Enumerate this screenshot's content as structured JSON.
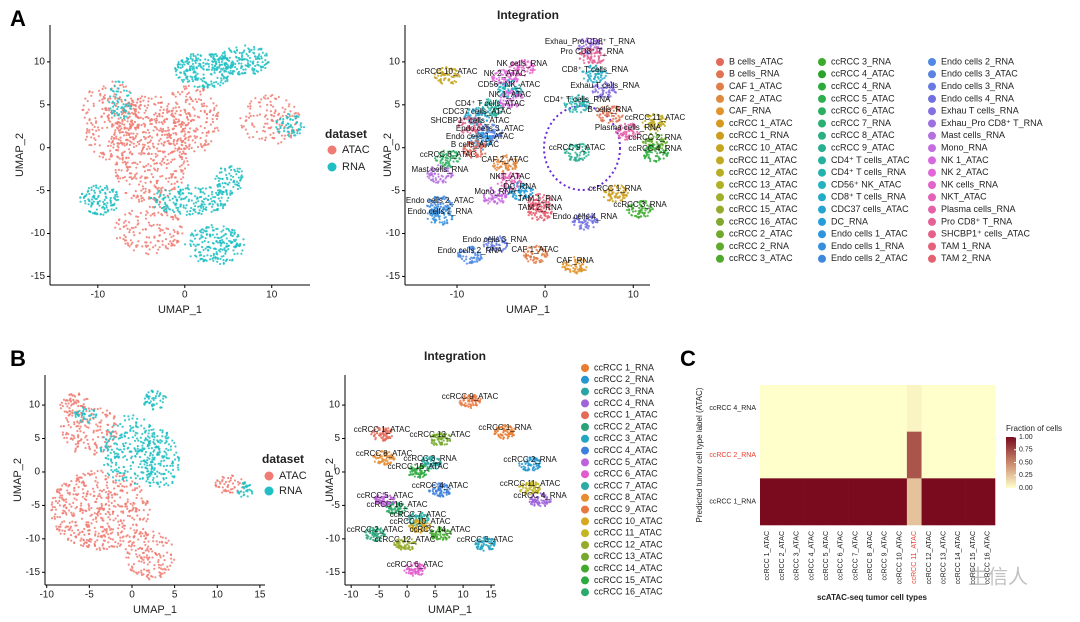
{
  "panel_labels": [
    "A",
    "B",
    "C"
  ],
  "watermark": "生信人",
  "chart_data": [
    {
      "type": "scatter",
      "xlabel": "UMAP_1",
      "ylabel": "UMAP_2",
      "xlim": [
        -15.5,
        14.4
      ],
      "ylim": [
        -16,
        14.3
      ],
      "xticks": [
        -10,
        0,
        10
      ],
      "yticks": [
        -15,
        -10,
        -5,
        0,
        5,
        10
      ],
      "legend_title": "dataset",
      "series": [
        {
          "name": "ATAC",
          "color": "#f07b72"
        },
        {
          "name": "RNA",
          "color": "#1fbfc3"
        }
      ]
    },
    {
      "type": "scatter",
      "title": "Integration",
      "xlabel": "UMAP_1",
      "ylabel": "UMAP_2",
      "xlim": [
        -15.9,
        11.9
      ],
      "ylim": [
        -16,
        14.3
      ],
      "xticks": [
        -10,
        0,
        10
      ],
      "yticks": [
        -15,
        -10,
        -5,
        0,
        5,
        10
      ],
      "series": [
        {
          "name": "B cells_ATAC",
          "color": "hsl(7,70%,62%)"
        },
        {
          "name": "B cells_RNA",
          "color": "hsl(14,70%,60%)"
        },
        {
          "name": "CAF 1_ATAC",
          "color": "hsl(21,70%,58%)"
        },
        {
          "name": "CAF 2_ATAC",
          "color": "hsl(28,72%,56%)"
        },
        {
          "name": "CAF_RNA",
          "color": "hsl(35,75%,52%)"
        },
        {
          "name": "ccRCC 1_ATAC",
          "color": "hsl(40,75%,48%)"
        },
        {
          "name": "ccRCC 1_RNA",
          "color": "hsl(44,75%,46%)"
        },
        {
          "name": "ccRCC 10_ATAC",
          "color": "hsl(48,72%,45%)"
        },
        {
          "name": "ccRCC 11_ATAC",
          "color": "hsl(52,70%,44%)"
        },
        {
          "name": "ccRCC 12_ATAC",
          "color": "hsl(56,68%,43%)"
        },
        {
          "name": "ccRCC 13_ATAC",
          "color": "hsl(60,65%,42%)"
        },
        {
          "name": "ccRCC 14_ATAC",
          "color": "hsl(66,62%,42%)"
        },
        {
          "name": "ccRCC 15_ATAC",
          "color": "hsl(72,60%,42%)"
        },
        {
          "name": "ccRCC 16_ATAC",
          "color": "hsl(80,58%,42%)"
        },
        {
          "name": "ccRCC 2_ATAC",
          "color": "hsl(88,58%,42%)"
        },
        {
          "name": "ccRCC 2_RNA",
          "color": "hsl(96,58%,42%)"
        },
        {
          "name": "ccRCC 3_ATAC",
          "color": "hsl(104,58%,42%)"
        },
        {
          "name": "ccRCC 3_RNA",
          "color": "hsl(112,60%,42%)"
        },
        {
          "name": "ccRCC 4_ATAC",
          "color": "hsl(120,60%,40%)"
        },
        {
          "name": "ccRCC 4_RNA",
          "color": "hsl(128,60%,42%)"
        },
        {
          "name": "ccRCC 5_ATAC",
          "color": "hsl(136,60%,43%)"
        },
        {
          "name": "ccRCC 6_ATAC",
          "color": "hsl(144,60%,43%)"
        },
        {
          "name": "ccRCC 7_RNA",
          "color": "hsl(152,60%,43%)"
        },
        {
          "name": "ccRCC 8_ATAC",
          "color": "hsl(160,60%,43%)"
        },
        {
          "name": "ccRCC 9_ATAC",
          "color": "hsl(166,62%,42%)"
        },
        {
          "name": "CD4⁺ T cells_ATAC",
          "color": "hsl(172,65%,42%)"
        },
        {
          "name": "CD4⁺ T cells_RNA",
          "color": "hsl(178,65%,42%)"
        },
        {
          "name": "CD56⁺ NK_ATAC",
          "color": "hsl(184,68%,44%)"
        },
        {
          "name": "CD8⁺ T cells_RNA",
          "color": "hsl(190,70%,46%)"
        },
        {
          "name": "CDC37 cells_ATAC",
          "color": "hsl(195,70%,48%)"
        },
        {
          "name": "DC_RNA",
          "color": "hsl(200,72%,50%)"
        },
        {
          "name": "Endo cells 1_ATAC",
          "color": "hsl(204,72%,52%)"
        },
        {
          "name": "Endo cells 1_RNA",
          "color": "hsl(208,72%,54%)"
        },
        {
          "name": "Endo cells 2_ATAC",
          "color": "hsl(212,72%,56%)"
        },
        {
          "name": "Endo cells 2_RNA",
          "color": "hsl(216,72%,60%)"
        },
        {
          "name": "Endo cells 3_ATAC",
          "color": "hsl(222,70%,62%)"
        },
        {
          "name": "Endo cells 3_RNA",
          "color": "hsl(230,68%,64%)"
        },
        {
          "name": "Endo cells 4_RNA",
          "color": "hsl(240,65%,66%)"
        },
        {
          "name": "Exhau T cells_RNA",
          "color": "hsl(252,65%,66%)"
        },
        {
          "name": "Exhau_Pro CD8⁺ T_RNA",
          "color": "hsl(264,65%,66%)"
        },
        {
          "name": "Mast cells_RNA",
          "color": "hsl(276,65%,66%)"
        },
        {
          "name": "Mono_RNA",
          "color": "hsl(286,65%,65%)"
        },
        {
          "name": "NK 1_ATAC",
          "color": "hsl(296,65%,64%)"
        },
        {
          "name": "NK 2_ATAC",
          "color": "hsl(304,68%,64%)"
        },
        {
          "name": "NK cells_RNA",
          "color": "hsl(312,70%,64%)"
        },
        {
          "name": "NKT_ATAC",
          "color": "hsl(320,72%,64%)"
        },
        {
          "name": "Plasma cells_RNA",
          "color": "hsl(328,72%,64%)"
        },
        {
          "name": "Pro CD8⁺ T_RNA",
          "color": "hsl(336,72%,64%)"
        },
        {
          "name": "SHCBP1⁺ cells_ATAC",
          "color": "hsl(342,72%,64%)"
        },
        {
          "name": "TAM 1_RNA",
          "color": "hsl(348,72%,64%)"
        },
        {
          "name": "TAM 2_RNA",
          "color": "hsl(354,72%,64%)"
        }
      ],
      "annotations": [
        "Exhau_Pro CD8⁺ T_RNA",
        "Pro CD8⁺ T_RNA",
        "NK cells_RNA",
        "NK 2_ATAC",
        "ccRCC 10_ATAC",
        "CD8⁺ T cells_RNA",
        "CD56⁺ NK_ATAC",
        "Exhau T cells_RNA",
        "NK 1_ATAC",
        "CD4⁺ T cells_RNA",
        "CD4⁺ T cells_ATAC",
        "B cells_RNA",
        "CDC37 cells_ATAC",
        "SHCBP1⁺ cells_ATAC",
        "ccRCC 11_ATAC",
        "Endo cells 3_ATAC",
        "Plasma cells_RNA",
        "Endo cells 1_ATAC",
        "ccRCC 2_RNA",
        "B cells_ATAC",
        "ccRCC 4_RNA",
        "ccRCC 9_ATAC",
        "ccRCC 6_ATAC",
        "CAF 2_ATAC",
        "Mast cells_RNA",
        "NKT_ATAC",
        "DC_RNA",
        "ccRCC 1_RNA",
        "Mono_RNA",
        "TAM 1_RNA",
        "ccRCC 3_RNA",
        "Endo cells 2_ATAC",
        "TAM 2_RNA",
        "Endo cells 1_RNA",
        "Endo cells 4_RNA",
        "Endo cells 3_RNA",
        "Endo cells 2_RNA",
        "CAF 1_ATAC",
        "CAF_RNA"
      ]
    },
    {
      "type": "scatter",
      "xlabel": "UMAP_1",
      "ylabel": "UMAP_2",
      "xlim": [
        -10.2,
        15.6
      ],
      "ylim": [
        -16.9,
        14.5
      ],
      "xticks": [
        -10,
        -5,
        0,
        5,
        10,
        15
      ],
      "yticks": [
        -15,
        -10,
        -5,
        0,
        5,
        10
      ],
      "legend_title": "dataset",
      "series": [
        {
          "name": "ATAC",
          "color": "#f07b72"
        },
        {
          "name": "RNA",
          "color": "#1fbfc3"
        }
      ]
    },
    {
      "type": "scatter",
      "title": "Integration",
      "xlabel": "UMAP_1",
      "ylabel": "UMAP_2",
      "xlim": [
        -11.1,
        15.7
      ],
      "ylim": [
        -16.9,
        14.5
      ],
      "xticks": [
        -10,
        -5,
        0,
        5,
        10,
        15
      ],
      "yticks": [
        -15,
        -10,
        -5,
        0,
        5,
        10
      ],
      "series": [
        {
          "name": "ccRCC 1_RNA",
          "color": "hsl(25,80%,55%)"
        },
        {
          "name": "ccRCC 2_RNA",
          "color": "hsl(200,70%,48%)"
        },
        {
          "name": "ccRCC 3_RNA",
          "color": "hsl(180,60%,40%)"
        },
        {
          "name": "ccRCC 4_RNA",
          "color": "hsl(270,60%,62%)"
        },
        {
          "name": "ccRCC 1_ATAC",
          "color": "hsl(8,72%,62%)"
        },
        {
          "name": "ccRCC 2_ATAC",
          "color": "hsl(160,60%,40%)"
        },
        {
          "name": "ccRCC 3_ATAC",
          "color": "hsl(190,70%,44%)"
        },
        {
          "name": "ccRCC 4_ATAC",
          "color": "hsl(215,70%,55%)"
        },
        {
          "name": "ccRCC 5_ATAC",
          "color": "hsl(285,65%,62%)"
        },
        {
          "name": "ccRCC 6_ATAC",
          "color": "hsl(310,70%,62%)"
        },
        {
          "name": "ccRCC 7_ATAC",
          "color": "hsl(175,60%,42%)"
        },
        {
          "name": "ccRCC 8_ATAC",
          "color": "hsl(30,80%,55%)"
        },
        {
          "name": "ccRCC 9_ATAC",
          "color": "hsl(20,80%,58%)"
        },
        {
          "name": "ccRCC 10_ATAC",
          "color": "hsl(45,75%,48%)"
        },
        {
          "name": "ccRCC 11_ATAC",
          "color": "hsl(55,70%,45%)"
        },
        {
          "name": "ccRCC 12_ATAC",
          "color": "hsl(70,60%,42%)"
        },
        {
          "name": "ccRCC 13_ATAC",
          "color": "hsl(85,58%,42%)"
        },
        {
          "name": "ccRCC 14_ATAC",
          "color": "hsl(110,58%,42%)"
        },
        {
          "name": "ccRCC 15_ATAC",
          "color": "hsl(130,58%,42%)"
        },
        {
          "name": "ccRCC 16_ATAC",
          "color": "hsl(150,60%,42%)"
        }
      ],
      "annotations": [
        "ccRCC 9_ATAC",
        "ccRCC 1_ATAC",
        "ccRCC 13_ATAC",
        "ccRCC 1_RNA",
        "ccRCC 8_ATAC",
        "ccRCC 3_RNA",
        "ccRCC 15_ATAC",
        "ccRCC 2_RNA",
        "ccRCC 11_ATAC",
        "ccRCC 4_RNA",
        "ccRCC 4_ATAC",
        "ccRCC 5_ATAC",
        "ccRCC 16_ATAC",
        "ccRCC 7_ATAC",
        "ccRCC 10_ATAC",
        "ccRCC 2_ATAC",
        "ccRCC 14_ATAC",
        "ccRCC 12_ATAC",
        "ccRCC 3_ATAC",
        "ccRCC 6_ATAC"
      ]
    },
    {
      "type": "heatmap",
      "xlabel": "scATAC-seq tumor cell types",
      "ylabel": "Predicted tumor cell type label (ATAC)",
      "x_categories": [
        "ccRCC 1_ATAC",
        "ccRCC 2_ATAC",
        "ccRCC 3_ATAC",
        "ccRCC 4_ATAC",
        "ccRCC 5_ATAC",
        "ccRCC 6_ATAC",
        "ccRCC 7_ATAC",
        "ccRCC 8_ATAC",
        "ccRCC 9_ATAC",
        "ccRCC 10_ATAC",
        "ccRCC 11_ATAC",
        "ccRCC 12_ATAC",
        "ccRCC 13_ATAC",
        "ccRCC 14_ATAC",
        "ccRCC 15_ATAC",
        "ccRCC 16_ATAC"
      ],
      "y_categories": [
        "ccRCC 4_RNA",
        "ccRCC 2_RNA",
        "ccRCC 1_RNA"
      ],
      "values": [
        [
          0,
          0,
          0,
          0,
          0,
          0,
          0,
          0,
          0,
          0,
          0.05,
          0,
          0,
          0,
          0,
          0
        ],
        [
          0,
          0,
          0,
          0,
          0,
          0,
          0,
          0,
          0,
          0,
          0.7,
          0,
          0,
          0,
          0,
          0
        ],
        [
          1,
          1,
          1,
          1,
          1,
          1,
          1,
          1,
          1,
          1,
          0.25,
          1,
          1,
          1,
          1,
          1
        ]
      ],
      "colorbar_title": "Fraction of cells",
      "clim": [
        0,
        1
      ],
      "cticks": [
        {
          "value": 1,
          "label": "1.00"
        },
        {
          "value": 0.75,
          "label": "0.75"
        },
        {
          "value": 0.5,
          "label": "0.50"
        },
        {
          "value": 0.25,
          "label": "0.25"
        },
        {
          "value": 0,
          "label": "0.00"
        }
      ],
      "colormap": [
        "#ffffcc",
        "#c9876b",
        "#7a0a1e"
      ],
      "highlight": {
        "x": 10,
        "y": 1,
        "color": "#e8412f"
      }
    }
  ]
}
